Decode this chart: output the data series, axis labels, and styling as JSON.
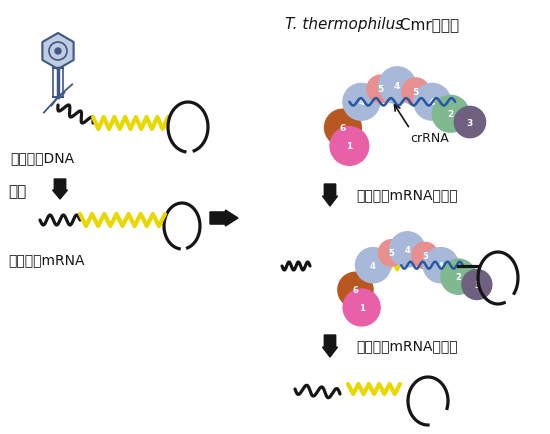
{
  "title_italic": "T. thermophilus",
  "title_normal": " Cmr複合体",
  "bg_color": "#ffffff",
  "label_phage_dna": "ファージDNA",
  "label_transcription": "転写",
  "label_phage_mrna": "ファージmRNA",
  "label_crRNA": "crRNA",
  "label_bind": "ファージmRNAへ結合",
  "label_degrade": "ファージmRNAの分解",
  "colors": {
    "blue_large": "#a8b8d8",
    "pink_small": "#e89090",
    "orange_brown": "#b85820",
    "magenta": "#e860a8",
    "green": "#80b890",
    "purple": "#706080",
    "crRNA_line": "#2858a0",
    "yellow_wavy": "#e8d800",
    "black": "#151515",
    "phage_blue": "#405888",
    "phage_fill": "#c0cce0"
  }
}
